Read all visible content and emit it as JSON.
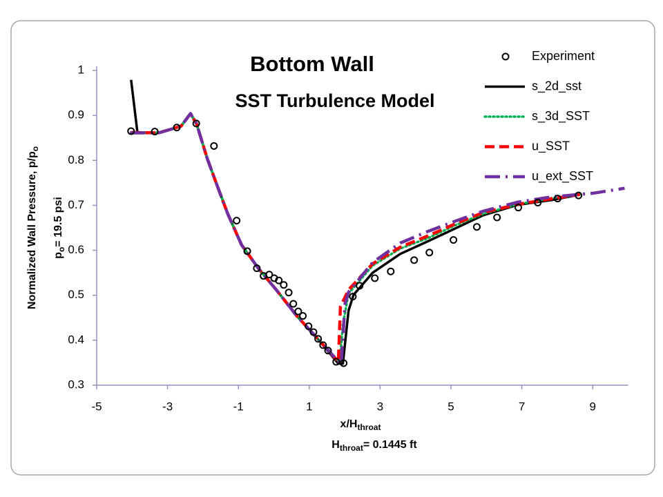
{
  "chart_data": {
    "type": "line",
    "title": "Bottom Wall",
    "subtitle": "SST Turbulence Model",
    "xlabel": {
      "main": "x/H",
      "sub": "throat"
    },
    "xlabel2": {
      "main": "H",
      "sub": "throat",
      "tail": "= 0.1445 ft"
    },
    "ylabel": {
      "main": "Normalized Wall Pressure, p/p",
      "sub": "o"
    },
    "ylabel2": {
      "main": "p",
      "sub": "o",
      "tail": "= 19.5 psi"
    },
    "xlim": [
      -5,
      10
    ],
    "xticks": [
      -5,
      -3,
      -1,
      1,
      3,
      5,
      7,
      9
    ],
    "ylim": [
      0.3,
      1
    ],
    "yticks": [
      0.3,
      0.4,
      0.5,
      0.6,
      0.7,
      0.8,
      0.9,
      1
    ],
    "legend": "top-right",
    "series": [
      {
        "name": "Experiment",
        "type": "scatter",
        "color": "#000000",
        "x": [
          -4.03,
          -3.36,
          -2.74,
          -2.19,
          -1.69,
          -1.05,
          -0.75,
          -0.48,
          -0.29,
          -0.13,
          0.01,
          0.14,
          0.28,
          0.42,
          0.55,
          0.69,
          0.82,
          0.98,
          1.12,
          1.25,
          1.39,
          1.53,
          1.76,
          1.97,
          2.23,
          2.42,
          2.85,
          3.3,
          3.96,
          4.39,
          5.07,
          5.73,
          6.3,
          6.9,
          7.45,
          8.01,
          8.6
        ],
        "values": [
          0.865,
          0.864,
          0.873,
          0.882,
          0.832,
          0.666,
          0.598,
          0.56,
          0.543,
          0.546,
          0.538,
          0.533,
          0.523,
          0.506,
          0.481,
          0.464,
          0.454,
          0.431,
          0.418,
          0.403,
          0.389,
          0.377,
          0.352,
          0.349,
          0.497,
          0.521,
          0.538,
          0.553,
          0.578,
          0.595,
          0.623,
          0.652,
          0.673,
          0.695,
          0.706,
          0.715,
          0.722
        ]
      },
      {
        "name": "s_2d_sst",
        "type": "line",
        "color": "#000000",
        "dash": "solid",
        "x": [
          -4.03,
          -3.85,
          -3.25,
          -2.62,
          -2.35,
          -2.18,
          -1.88,
          -1.59,
          -1.3,
          -0.91,
          -0.42,
          0.07,
          0.65,
          1.23,
          1.82,
          1.95,
          2.11,
          2.25,
          2.79,
          3.57,
          4.35,
          5.13,
          5.91,
          6.88,
          7.86,
          8.64
        ],
        "values": [
          0.979,
          0.862,
          0.861,
          0.876,
          0.904,
          0.881,
          0.804,
          0.742,
          0.681,
          0.612,
          0.558,
          0.512,
          0.454,
          0.404,
          0.348,
          0.348,
          0.466,
          0.501,
          0.55,
          0.592,
          0.62,
          0.649,
          0.678,
          0.701,
          0.712,
          0.724
        ]
      },
      {
        "name": "s_3d_SST",
        "type": "line",
        "color": "#00b050",
        "dash": "dot",
        "x": [
          -4.03,
          -3.25,
          -2.62,
          -2.35,
          -2.18,
          -1.88,
          -1.59,
          -1.3,
          -0.91,
          -0.42,
          0.07,
          0.65,
          1.23,
          1.86,
          1.95,
          2.11,
          2.79,
          3.57,
          4.35,
          5.13,
          5.91,
          6.88,
          7.86,
          8.64
        ],
        "values": [
          0.862,
          0.861,
          0.876,
          0.904,
          0.881,
          0.804,
          0.742,
          0.681,
          0.612,
          0.558,
          0.512,
          0.454,
          0.404,
          0.351,
          0.435,
          0.504,
          0.566,
          0.604,
          0.627,
          0.656,
          0.681,
          0.702,
          0.716,
          0.724
        ]
      },
      {
        "name": "u_SST",
        "type": "line",
        "color": "#ff0000",
        "dash": "dash",
        "x": [
          -4.03,
          -3.25,
          -2.62,
          -2.35,
          -2.18,
          -1.88,
          -1.59,
          -1.3,
          -0.91,
          -0.42,
          0.07,
          0.65,
          1.23,
          1.82,
          1.88,
          2.11,
          2.79,
          3.57,
          4.35,
          5.13,
          5.91,
          6.88,
          7.86,
          8.64
        ],
        "values": [
          0.862,
          0.861,
          0.876,
          0.904,
          0.881,
          0.804,
          0.742,
          0.681,
          0.612,
          0.558,
          0.512,
          0.454,
          0.404,
          0.352,
          0.474,
          0.512,
          0.57,
          0.607,
          0.632,
          0.659,
          0.684,
          0.702,
          0.715,
          0.724
        ]
      },
      {
        "name": "u_ext_SST",
        "type": "line",
        "color": "#7030a0",
        "dash": "dashdot",
        "x": [
          -4.06,
          -3.25,
          -2.62,
          -2.35,
          -2.18,
          -1.88,
          -1.59,
          -1.3,
          -0.91,
          -0.42,
          0.07,
          0.65,
          1.23,
          1.9,
          2.01,
          2.11,
          2.79,
          3.57,
          4.35,
          5.13,
          5.91,
          6.88,
          7.86,
          9.03,
          9.9
        ],
        "values": [
          0.861,
          0.861,
          0.876,
          0.904,
          0.881,
          0.804,
          0.742,
          0.681,
          0.612,
          0.558,
          0.512,
          0.454,
          0.404,
          0.346,
          0.481,
          0.507,
          0.573,
          0.616,
          0.642,
          0.665,
          0.687,
          0.707,
          0.719,
          0.727,
          0.738
        ]
      }
    ]
  }
}
